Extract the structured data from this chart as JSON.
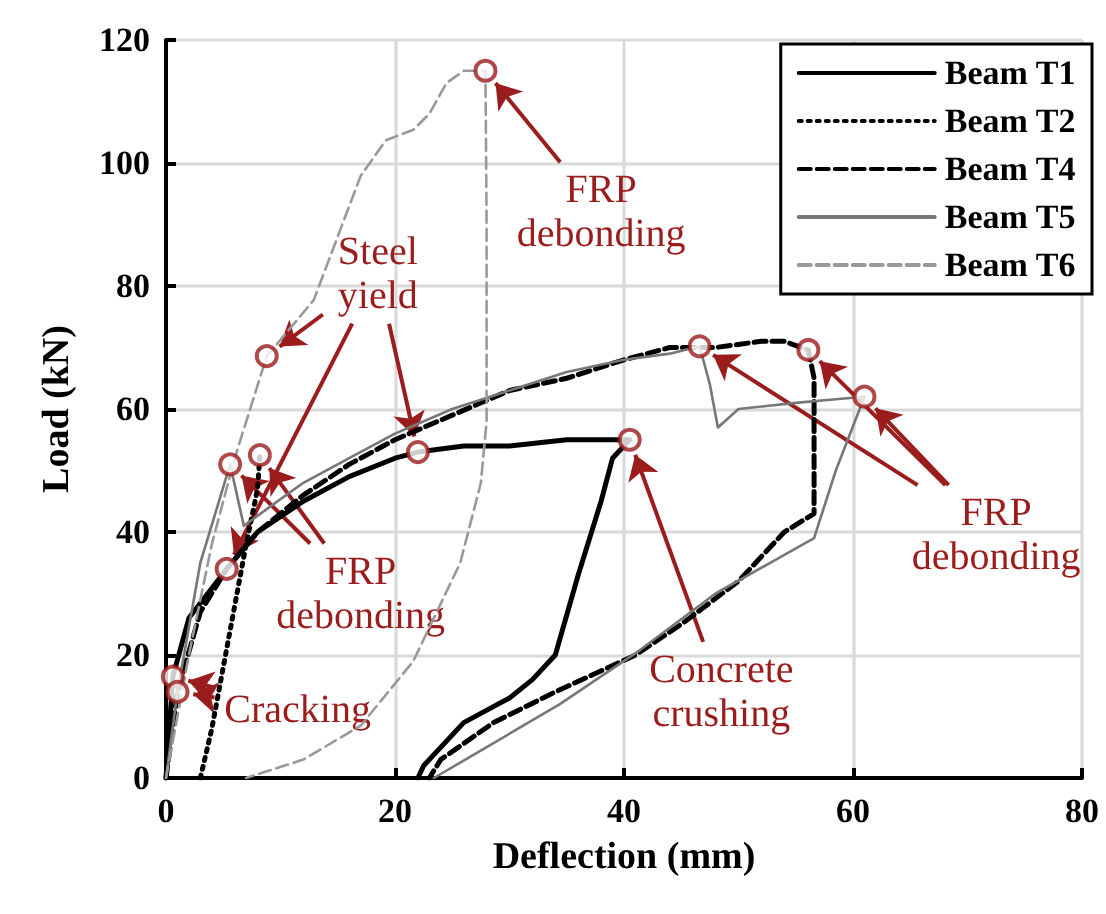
{
  "chart_data": {
    "type": "line",
    "xlabel": "Deflection (mm)",
    "ylabel": "Load (kN)",
    "xlim": [
      0,
      80
    ],
    "xticks": [
      0,
      20,
      40,
      60,
      80
    ],
    "ylim": [
      0,
      120
    ],
    "yticks": [
      0,
      20,
      40,
      60,
      80,
      100,
      120
    ],
    "grid": true,
    "legend": "top right",
    "marker": "none",
    "series": [
      {
        "name": "Beam T1",
        "color": "#000000",
        "line_style": "solid",
        "x": [
          0,
          0.6,
          2,
          5.3,
          8,
          12,
          16,
          20,
          22,
          26,
          30,
          35,
          38,
          40.5,
          39,
          38,
          36,
          34,
          32,
          30,
          26,
          22.5,
          22
        ],
        "values": [
          0,
          16.5,
          26,
          34,
          40,
          45,
          49,
          52,
          53,
          54,
          54,
          55,
          55,
          55,
          52,
          45,
          33,
          20,
          16,
          13,
          9,
          2,
          0
        ]
      },
      {
        "name": "Beam T2",
        "color": "#000000",
        "line_style": "dotted",
        "x": [
          3,
          4,
          5,
          6,
          7,
          8,
          8.2
        ],
        "values": [
          0,
          8,
          18,
          28,
          38,
          47,
          52.5
        ]
      },
      {
        "name": "Beam T4",
        "color": "#000000",
        "line_style": "dashed",
        "x": [
          0,
          1,
          3,
          5.3,
          8,
          12,
          16,
          20,
          25,
          30,
          35,
          40,
          44,
          48,
          52,
          54,
          56.1,
          56.6,
          56.6,
          54,
          50,
          45,
          41,
          34,
          28.6,
          24,
          23
        ],
        "values": [
          0,
          14,
          27,
          34,
          40,
          46,
          51,
          55,
          59,
          63,
          65,
          68,
          70,
          70,
          71,
          71,
          69.6,
          65,
          43,
          40,
          32,
          25,
          20,
          14,
          9,
          3,
          0
        ]
      },
      {
        "name": "Beam T5",
        "color": "#777777",
        "line_style": "solid",
        "x": [
          0,
          1,
          3,
          5.6,
          6.8,
          9,
          12,
          16,
          20,
          25,
          30,
          35,
          40,
          44,
          46.6,
          47.5,
          48.2,
          50,
          55,
          58,
          61,
          58.5,
          56.6,
          48,
          41.4,
          34.4,
          23.4
        ],
        "values": [
          0,
          14,
          35,
          51,
          41,
          44,
          48,
          52,
          56,
          60,
          63,
          66,
          68,
          69,
          70.2,
          64,
          57,
          60,
          61,
          61.5,
          62,
          50,
          39,
          30,
          20.8,
          12,
          0
        ]
      },
      {
        "name": "Beam T6",
        "color": "#999999",
        "line_style": "dashed",
        "x": [
          0,
          2,
          4,
          6,
          8.8,
          12.9,
          17,
          19.2,
          21.6,
          23,
          24.5,
          26,
          27.9,
          28,
          28,
          27.5,
          25.7,
          21.6,
          17,
          12,
          7
        ],
        "values": [
          0,
          20,
          38,
          52,
          68.6,
          77.7,
          97.9,
          103.7,
          105.4,
          108,
          113,
          115,
          115,
          90,
          58,
          48,
          35,
          19,
          8.5,
          3,
          0
        ]
      },
      {
        "type": "scatter",
        "marker": "circle",
        "color": "#9b1c1c",
        "x": [
          0.6,
          1,
          5.3,
          5.6,
          8.2,
          8.8,
          22,
          27.9,
          40.5,
          46.6,
          56.1,
          61
        ],
        "values": [
          16.5,
          14,
          34,
          51,
          52.5,
          68.6,
          53,
          115,
          55,
          70.2,
          69.6,
          62
        ]
      }
    ],
    "annotations": [
      {
        "text": "FRP debonding",
        "x": 27.9,
        "y": 115
      },
      {
        "text": "Steel yield",
        "x": 22,
        "y": 53
      },
      {
        "text": "FRP debonding",
        "x": 5.6,
        "y": 51
      },
      {
        "text": "Cracking",
        "x": 0.6,
        "y": 16.5
      },
      {
        "text": "Concrete crushing",
        "x": 40.5,
        "y": 55
      },
      {
        "text": "FRP debonding",
        "x": 46.6,
        "y": 70.2
      }
    ]
  }
}
